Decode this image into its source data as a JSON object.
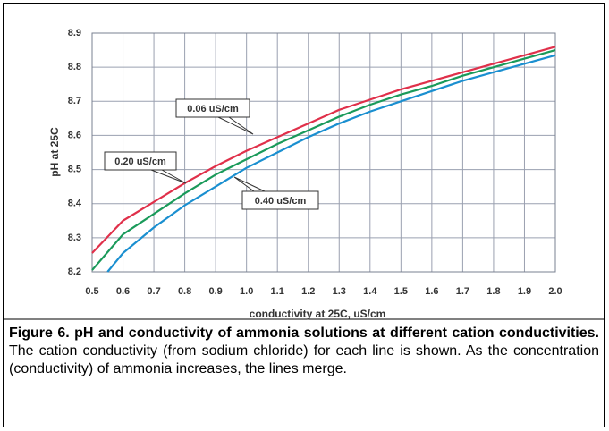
{
  "chart_data": {
    "type": "line",
    "xlabel": "conductivity at 25C, uS/cm",
    "ylabel": "pH at 25C",
    "xlim": [
      0.5,
      2.0
    ],
    "ylim": [
      8.2,
      8.9
    ],
    "xticks": [
      0.5,
      0.6,
      0.7,
      0.8,
      0.9,
      {
        "value": 1,
        "label": "1.0"
      },
      1.1,
      1.2,
      1.3,
      1.4,
      1.5,
      1.6,
      1.7,
      1.8,
      1.9,
      {
        "value": 2,
        "label": "2.0"
      }
    ],
    "yticks": [
      8.2,
      8.3,
      8.4,
      8.5,
      8.6,
      8.7,
      8.8,
      8.9
    ],
    "grid": true,
    "series": [
      {
        "name": "0.06 uS/cm",
        "color": "#e0304a",
        "x": [
          0.5,
          0.6,
          0.7,
          0.8,
          0.9,
          1.0,
          1.1,
          1.2,
          1.3,
          1.4,
          1.5,
          1.6,
          1.7,
          1.8,
          1.9,
          2.0
        ],
        "values": [
          8.255,
          8.35,
          8.405,
          8.46,
          8.51,
          8.555,
          8.595,
          8.635,
          8.675,
          8.705,
          8.735,
          8.76,
          8.785,
          8.81,
          8.835,
          8.86
        ]
      },
      {
        "name": "0.20 uS/cm",
        "color": "#1a9a5a",
        "x": [
          0.5,
          0.6,
          0.7,
          0.8,
          0.9,
          1.0,
          1.1,
          1.2,
          1.3,
          1.4,
          1.5,
          1.6,
          1.7,
          1.8,
          1.9,
          2.0
        ],
        "values": [
          8.205,
          8.31,
          8.37,
          8.43,
          8.485,
          8.53,
          8.575,
          8.615,
          8.655,
          8.69,
          8.72,
          8.745,
          8.775,
          8.8,
          8.825,
          8.85
        ]
      },
      {
        "name": "0.40 uS/cm",
        "color": "#1a8fd0",
        "x": [
          0.55,
          0.6,
          0.7,
          0.8,
          0.9,
          1.0,
          1.1,
          1.2,
          1.3,
          1.4,
          1.5,
          1.6,
          1.7,
          1.8,
          1.9,
          2.0
        ],
        "values": [
          8.2,
          8.255,
          8.33,
          8.395,
          8.45,
          8.505,
          8.55,
          8.595,
          8.635,
          8.67,
          8.7,
          8.73,
          8.76,
          8.785,
          8.81,
          8.835
        ]
      }
    ]
  },
  "caption": {
    "bold": "Figure 6. pH and conductivity of ammonia solutions at different cation conductivities.",
    "text": "The cation conductivity (from sodium chloride) for each line is shown. As the concentration (conductivity) of ammonia increases,  the lines merge."
  }
}
